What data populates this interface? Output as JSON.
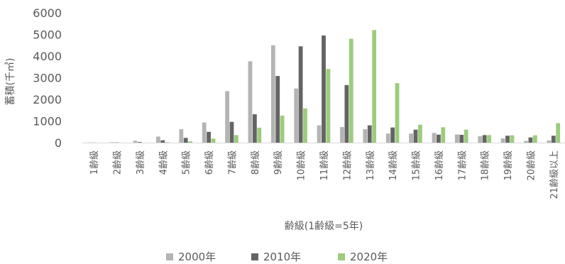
{
  "chart_data": {
    "type": "bar",
    "xlabel": "齢級(1齢級=5年)",
    "ylabel": "蓄積(千㎥)",
    "ylim": [
      0,
      6000
    ],
    "yticks": [
      0,
      1000,
      2000,
      3000,
      4000,
      5000,
      6000
    ],
    "grid": false,
    "legend_position": "bottom",
    "categories": [
      "1齢級",
      "2齢級",
      "3齢級",
      "4齢級",
      "5齢級",
      "6齢級",
      "7齢級",
      "8齢級",
      "9齢級",
      "10齢級",
      "11齢級",
      "12齢級",
      "13齢級",
      "14齢級",
      "15齢級",
      "16齢級",
      "17齢級",
      "18齢級",
      "19齢級",
      "20齢級",
      "21齢級以上"
    ],
    "series": [
      {
        "name": "2000年",
        "color": "#b4b4b4",
        "values": [
          10,
          20,
          90,
          280,
          620,
          930,
          2380,
          3760,
          4500,
          2500,
          800,
          720,
          620,
          420,
          420,
          450,
          380,
          300,
          200,
          80,
          100
        ]
      },
      {
        "name": "2010年",
        "color": "#646464",
        "values": [
          5,
          10,
          30,
          110,
          220,
          500,
          960,
          1310,
          3080,
          4450,
          4950,
          2660,
          800,
          700,
          600,
          370,
          360,
          350,
          320,
          240,
          320
        ]
      },
      {
        "name": "2020年",
        "color": "#9ccc7c",
        "values": [
          0,
          0,
          0,
          20,
          60,
          190,
          350,
          690,
          1250,
          1580,
          3400,
          4800,
          5200,
          2750,
          830,
          710,
          600,
          350,
          340,
          340,
          900
        ]
      }
    ]
  }
}
